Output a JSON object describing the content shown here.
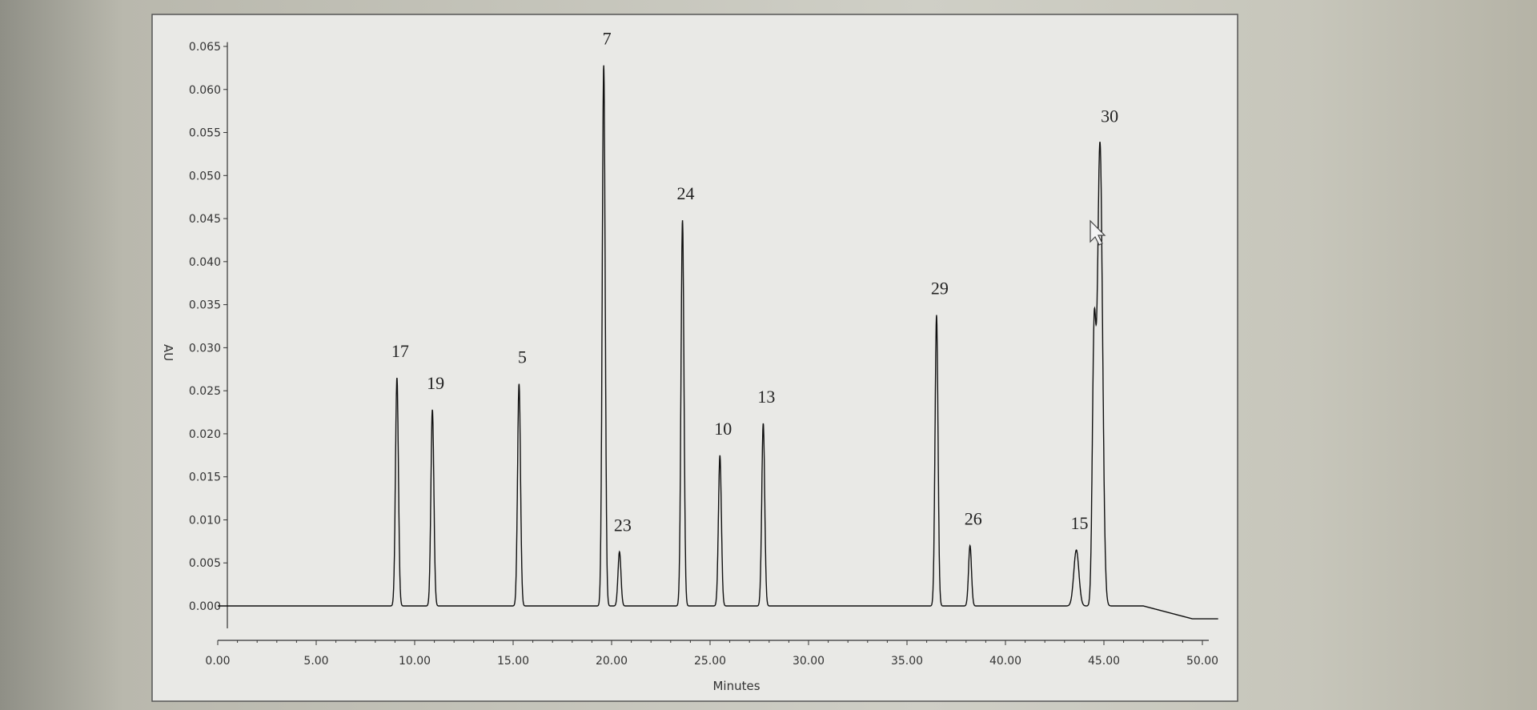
{
  "chart_data": {
    "type": "line",
    "title": "",
    "xlabel": "Minutes",
    "ylabel": "AU",
    "xlim": [
      0,
      51
    ],
    "ylim": [
      -0.002,
      0.066
    ],
    "x_ticks": [
      "0.00",
      "5.00",
      "10.00",
      "15.00",
      "20.00",
      "25.00",
      "30.00",
      "35.00",
      "40.00",
      "45.00",
      "50.00"
    ],
    "y_ticks": [
      "0.000",
      "0.005",
      "0.010",
      "0.015",
      "0.020",
      "0.025",
      "0.030",
      "0.035",
      "0.040",
      "0.045",
      "0.050",
      "0.055",
      "0.060",
      "0.065"
    ],
    "grid": false,
    "peaks": [
      {
        "label": "17",
        "x": 9.1,
        "y": 0.0265
      },
      {
        "label": "19",
        "x": 10.9,
        "y": 0.0228
      },
      {
        "label": "5",
        "x": 15.3,
        "y": 0.0258
      },
      {
        "label": "7",
        "x": 19.6,
        "y": 0.0628
      },
      {
        "label": "23",
        "x": 20.4,
        "y": 0.0063
      },
      {
        "label": "24",
        "x": 23.6,
        "y": 0.0448
      },
      {
        "label": "10",
        "x": 25.5,
        "y": 0.0175
      },
      {
        "label": "13",
        "x": 27.7,
        "y": 0.0212
      },
      {
        "label": "29",
        "x": 36.5,
        "y": 0.0338
      },
      {
        "label": "26",
        "x": 38.2,
        "y": 0.007
      },
      {
        "label": "15",
        "x": 43.6,
        "y": 0.0065
      },
      {
        "label": "30",
        "x": 44.8,
        "y": 0.0538
      }
    ],
    "baseline_end": -0.0015,
    "line_color": "#111111"
  }
}
